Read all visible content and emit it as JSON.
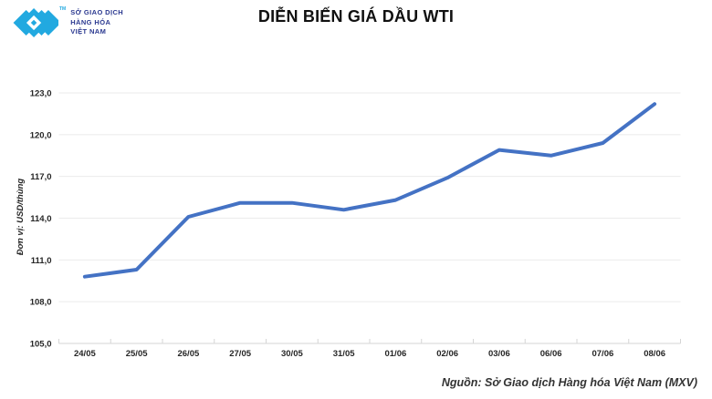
{
  "header": {
    "logo": {
      "lines": [
        "SỞ GIAO DỊCH",
        "HÀNG HÓA",
        "VIỆT NAM"
      ],
      "tm": "TM",
      "icon_color": "#22A9E0",
      "text_color": "#2B3990"
    },
    "title": "DIỄN BIẾN GIÁ DẦU WTI"
  },
  "chart_data": {
    "type": "line",
    "title": "DIỄN BIẾN GIÁ DẦU WTI",
    "ylabel": "Đơn vị: USD/thùng",
    "xlabel": "",
    "categories": [
      "24/05",
      "25/05",
      "26/05",
      "27/05",
      "30/05",
      "31/05",
      "01/06",
      "02/06",
      "03/06",
      "06/06",
      "07/06",
      "08/06"
    ],
    "values": [
      109.8,
      110.3,
      114.1,
      115.1,
      115.1,
      114.6,
      115.3,
      116.9,
      118.9,
      118.5,
      119.4,
      122.2
    ],
    "series_name": "Giá dầu WTI",
    "ylim": [
      105,
      123
    ],
    "ytick_step": 3,
    "ytick_labels": [
      "105,0",
      "108,0",
      "111,0",
      "114,0",
      "117,0",
      "120,0",
      "123,0"
    ],
    "grid": true,
    "legend": false,
    "line_color": "#4472C4",
    "grid_color": "#EBEBEB",
    "axis_color": "#D5D5D5",
    "tick_label_color": "#262626"
  },
  "footer": {
    "source": "Nguồn: Sở Giao dịch Hàng hóa Việt Nam (MXV)"
  }
}
